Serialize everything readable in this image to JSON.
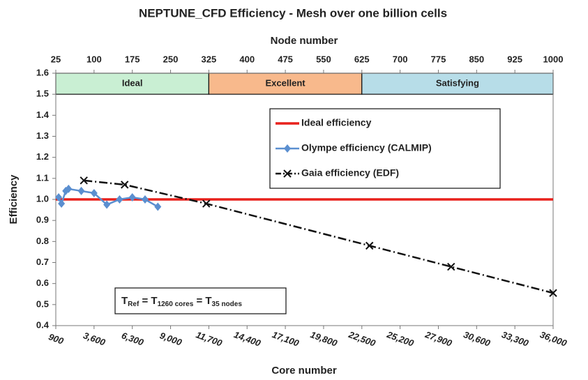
{
  "chart_data": {
    "type": "line",
    "title": "NEPTUNE_CFD Efficiency - Mesh over one billion cells",
    "xlabel": "Core number",
    "x2label": "Node number",
    "ylabel": "Efficiency",
    "xlim": [
      900,
      36000
    ],
    "xticks": [
      900,
      {
        "value": 3600,
        "label": "3,600"
      },
      {
        "value": 6300,
        "label": "6,300"
      },
      {
        "value": 9000,
        "label": "9,000"
      },
      {
        "value": 11700,
        "label": "11,700"
      },
      {
        "value": 14400,
        "label": "14,400"
      },
      {
        "value": 17100,
        "label": "17,100"
      },
      {
        "value": 19800,
        "label": "19,800"
      },
      {
        "value": 22500,
        "label": "22,500"
      },
      {
        "value": 25200,
        "label": "25,200"
      },
      {
        "value": 27900,
        "label": "27,900"
      },
      {
        "value": 30600,
        "label": "30,600"
      },
      {
        "value": 33300,
        "label": "33,300"
      },
      {
        "value": 36000,
        "label": "36,000"
      }
    ],
    "x2lim": [
      25,
      1000
    ],
    "x2ticks": [
      25,
      100,
      175,
      250,
      325,
      400,
      475,
      550,
      625,
      700,
      775,
      850,
      925,
      1000
    ],
    "ylim": [
      0.4,
      1.6
    ],
    "yticks": [
      0.4,
      0.5,
      0.6,
      0.7,
      0.8,
      0.9,
      {
        "value": 1,
        "label": "1.0"
      },
      1.1,
      1.2,
      1.3,
      1.4,
      1.5,
      1.6
    ],
    "bands": [
      {
        "label": "Ideal",
        "start": 25,
        "end": 325,
        "color": "#c9efd3"
      },
      {
        "label": "Excellent",
        "start": 325,
        "end": 625,
        "color": "#f8b98c"
      },
      {
        "label": "Satisfying",
        "start": 625,
        "end": 1000,
        "color": "#b7dde8"
      }
    ],
    "series": [
      {
        "name": "Ideal efficiency",
        "color": "#e8211c",
        "marker": "none",
        "x": [
          900,
          36000
        ],
        "values": [
          1,
          1
        ]
      },
      {
        "name": "Olympe efficiency (CALMIP)",
        "color": "#5b8fd0",
        "marker": "diamond",
        "x": [
          1100,
          1300,
          1600,
          1800,
          2700,
          3600,
          4500,
          5400,
          6300,
          7200,
          8100
        ],
        "values": [
          1.01,
          0.98,
          1.04,
          1.05,
          1.04,
          1.03,
          0.975,
          1.0,
          1.01,
          1.0,
          0.965
        ]
      },
      {
        "name": "Gaia efficiency (EDF)",
        "color": "#111111",
        "marker": "x",
        "x": [
          2880,
          5760,
          11520,
          23040,
          28800,
          36000
        ],
        "values": [
          1.09,
          1.07,
          0.98,
          0.78,
          0.68,
          0.555
        ]
      }
    ],
    "annotation": [
      {
        "text": "T"
      },
      {
        "text": "Ref",
        "sub": true
      },
      {
        "text": " = T"
      },
      {
        "text": "1260 cores",
        "sub": true
      },
      {
        "text": " = T"
      },
      {
        "text": "35 nodes",
        "sub": true
      }
    ]
  }
}
